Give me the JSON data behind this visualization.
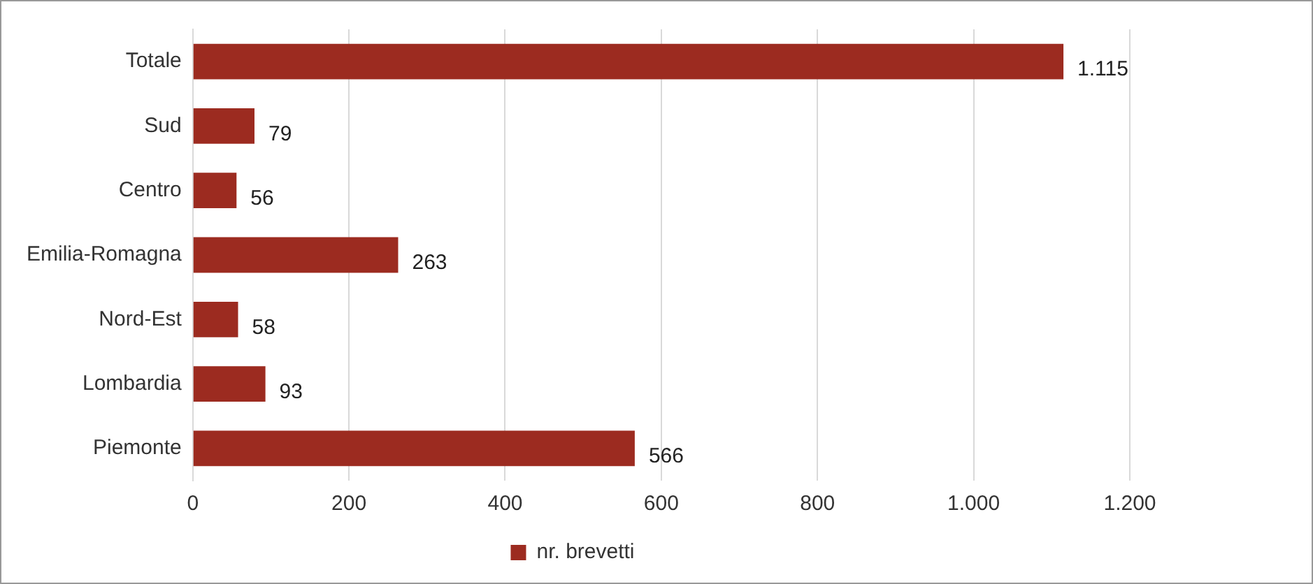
{
  "chart_data": {
    "type": "bar",
    "orientation": "horizontal",
    "categories": [
      "Totale",
      "Sud",
      "Centro",
      "Emilia-Romagna",
      "Nord-Est",
      "Lombardia",
      "Piemonte"
    ],
    "series": [
      {
        "name": "nr. brevetti",
        "color": "#9c2b20",
        "values": [
          1115,
          79,
          56,
          263,
          58,
          93,
          566
        ],
        "value_labels": [
          "1.115",
          "79",
          "56",
          "263",
          "58",
          "93",
          "566"
        ]
      }
    ],
    "xlim": [
      0,
      1200
    ],
    "xticks": [
      0,
      200,
      400,
      600,
      800,
      {
        "value": 1000,
        "label": "1.000"
      },
      {
        "value": 1200,
        "label": "1.200"
      }
    ],
    "grid": "x",
    "legend": "bottom"
  }
}
